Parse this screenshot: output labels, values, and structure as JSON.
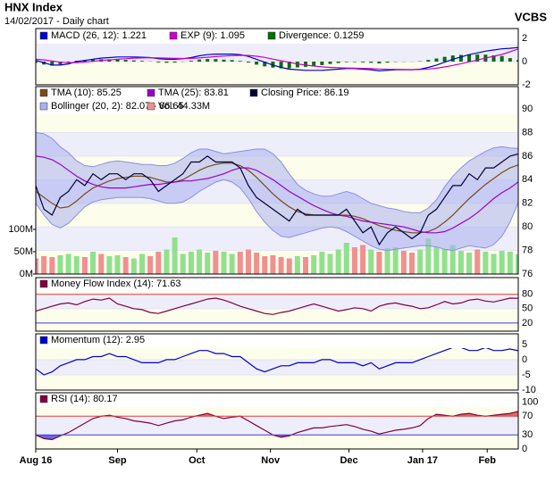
{
  "header": {
    "title": "HNX Index",
    "subtitle": "14/02/2017 - Daily chart",
    "source": "VCBS"
  },
  "x_axis": {
    "x": [
      0,
      1,
      2,
      3,
      4,
      5,
      6,
      7,
      8,
      9,
      10,
      11,
      12,
      13,
      14,
      15,
      16,
      17,
      18,
      19,
      20,
      21,
      22,
      23,
      24,
      25,
      26,
      27,
      28,
      29,
      30,
      31,
      32,
      33,
      34,
      35,
      36,
      37,
      38,
      39,
      40,
      41,
      42,
      43,
      44,
      45,
      46,
      47,
      48,
      49,
      50,
      51,
      52,
      53,
      54,
      55,
      56,
      57,
      58,
      59
    ],
    "xlim": [
      0,
      59
    ],
    "xticks": [
      {
        "value": 0,
        "label": "Aug 16"
      },
      {
        "value": 10,
        "label": "Sep"
      },
      {
        "value": 19.7,
        "label": "Oct"
      },
      {
        "value": 28.7,
        "label": "Nov"
      },
      {
        "value": 38.3,
        "label": "Dec"
      },
      {
        "value": 47.3,
        "label": "Jan 17"
      },
      {
        "value": 55.2,
        "label": "Feb"
      }
    ]
  },
  "chart_data": [
    {
      "type": "combo",
      "ylim": [
        -2,
        2.85
      ],
      "yticks": [
        -2,
        0,
        2
      ],
      "series": [
        {
          "name": "MACD (26, 12): 1.221",
          "kind": "line",
          "color": "#0000cc",
          "values": [
            0.1,
            -0.1,
            -0.3,
            -0.3,
            -0.2,
            0,
            0.1,
            0.2,
            0.3,
            0.35,
            0.4,
            0.4,
            0.4,
            0.38,
            0.35,
            0.25,
            0.2,
            0.2,
            0.25,
            0.35,
            0.5,
            0.6,
            0.65,
            0.65,
            0.65,
            0.6,
            0.45,
            0.2,
            -0.05,
            -0.3,
            -0.5,
            -0.65,
            -0.7,
            -0.75,
            -0.75,
            -0.75,
            -0.7,
            -0.65,
            -0.6,
            -0.6,
            -0.65,
            -0.7,
            -0.8,
            -0.75,
            -0.7,
            -0.7,
            -0.7,
            -0.65,
            -0.5,
            -0.3,
            -0.05,
            0.2,
            0.4,
            0.6,
            0.75,
            0.9,
            1,
            1.1,
            1.15,
            1.221
          ]
        },
        {
          "name": "EXP (9): 1.095",
          "kind": "line",
          "color": "#cc00cc",
          "values": [
            0.2,
            0.15,
            0.05,
            -0.05,
            -0.1,
            -0.08,
            -0.04,
            0.02,
            0.1,
            0.15,
            0.2,
            0.25,
            0.3,
            0.32,
            0.33,
            0.32,
            0.3,
            0.28,
            0.27,
            0.28,
            0.32,
            0.38,
            0.43,
            0.48,
            0.52,
            0.54,
            0.53,
            0.46,
            0.36,
            0.22,
            0.08,
            -0.07,
            -0.2,
            -0.3,
            -0.38,
            -0.45,
            -0.5,
            -0.53,
            -0.55,
            -0.56,
            -0.58,
            -0.6,
            -0.64,
            -0.66,
            -0.67,
            -0.68,
            -0.69,
            -0.68,
            -0.64,
            -0.57,
            -0.46,
            -0.33,
            -0.18,
            -0.02,
            0.14,
            0.3,
            0.46,
            0.62,
            0.85,
            1.095
          ]
        },
        {
          "name": "Divergence: 0.1259",
          "kind": "bar",
          "color": "#007000",
          "values": [
            -0.1,
            -0.25,
            -0.35,
            -0.25,
            -0.1,
            0.08,
            0.14,
            0.18,
            0.2,
            0.2,
            0.2,
            0.15,
            0.1,
            0.06,
            0.02,
            -0.07,
            -0.1,
            -0.08,
            -0.02,
            0.07,
            0.18,
            0.22,
            0.22,
            0.17,
            0.13,
            0.06,
            -0.08,
            -0.26,
            -0.41,
            -0.52,
            -0.58,
            -0.58,
            -0.5,
            -0.45,
            -0.37,
            -0.3,
            -0.2,
            -0.12,
            -0.05,
            -0.04,
            -0.07,
            -0.1,
            -0.16,
            -0.09,
            -0.03,
            -0.02,
            -0.01,
            0.03,
            0.14,
            0.27,
            0.41,
            0.53,
            0.58,
            0.62,
            0.61,
            0.6,
            0.54,
            0.48,
            0.3,
            0.1259
          ]
        }
      ]
    },
    {
      "type": "combo",
      "ylim": [
        76,
        91.9
      ],
      "yticks": [
        76,
        78,
        80,
        82,
        84,
        86,
        88,
        90
      ],
      "y2lim": [
        0,
        420
      ],
      "y2ticks": [
        {
          "value": 0,
          "label": "0M"
        },
        {
          "value": 50,
          "label": "50M"
        },
        {
          "value": 100,
          "label": "100M"
        }
      ],
      "series": [
        {
          "name": "TMA (10): 85.25",
          "kind": "line",
          "color": "#7a4a1a",
          "values": [
            83,
            82.5,
            82,
            81.6,
            81.7,
            82.2,
            82.8,
            83.3,
            83.6,
            83.9,
            84.1,
            84.2,
            84.3,
            84.3,
            84.2,
            84,
            83.8,
            83.8,
            84,
            84.4,
            84.8,
            85.1,
            85.3,
            85.4,
            85.4,
            85.2,
            84.8,
            84.2,
            83.5,
            82.8,
            82.2,
            81.7,
            81.3,
            81.1,
            81,
            81,
            81,
            81,
            81,
            80.9,
            80.7,
            80.4,
            80.1,
            79.9,
            79.7,
            79.6,
            79.5,
            79.5,
            79.6,
            79.9,
            80.4,
            81,
            81.7,
            82.4,
            83,
            83.6,
            84.1,
            84.6,
            85,
            85.25
          ]
        },
        {
          "name": "TMA (25): 83.81",
          "kind": "line",
          "color": "#9900cc",
          "values": [
            86,
            85.9,
            85.7,
            85.3,
            84.8,
            84.3,
            83.9,
            83.6,
            83.4,
            83.3,
            83.3,
            83.3,
            83.4,
            83.5,
            83.6,
            83.6,
            83.7,
            83.8,
            83.9,
            83.9,
            84,
            84.1,
            84.3,
            84.5,
            84.8,
            85,
            85,
            84.8,
            84.4,
            84,
            83.5,
            83,
            82.6,
            82.2,
            81.8,
            81.5,
            81.2,
            81,
            80.9,
            80.7,
            80.5,
            80.4,
            80.3,
            80.2,
            80.1,
            80,
            79.8,
            79.6,
            79.5,
            79.5,
            79.6,
            79.9,
            80.3,
            80.7,
            81.2,
            81.8,
            82.4,
            82.9,
            83.3,
            83.81
          ]
        },
        {
          "name": "Closing Price: 86.19",
          "kind": "line",
          "color": "#000033",
          "values": [
            83.5,
            81.5,
            81,
            82.5,
            83,
            84,
            83.5,
            84.5,
            84,
            84.5,
            84.5,
            84,
            84.5,
            84.5,
            84,
            83,
            83.5,
            84,
            84.5,
            85.5,
            85.5,
            86,
            85.5,
            85.5,
            85.5,
            85,
            83.5,
            82.5,
            82,
            81.5,
            81,
            80.5,
            81.5,
            81,
            81,
            81,
            81,
            81,
            81.5,
            80.5,
            79.5,
            80,
            78.5,
            79.5,
            80,
            79.5,
            79,
            79.5,
            81,
            81.5,
            82.5,
            83.5,
            83.5,
            84.5,
            84,
            85,
            85,
            85.5,
            86,
            86.19
          ]
        },
        {
          "name": "Bollinger (20, 2): 82.07 - 86.65",
          "kind": "band",
          "color": "#aab0ee",
          "upper": [
            88,
            87.9,
            87.5,
            86.8,
            86.3,
            85.6,
            85.2,
            85.1,
            85.3,
            85.5,
            85.6,
            85.5,
            85.4,
            85.3,
            85.3,
            85.2,
            85.2,
            85.4,
            85.8,
            86.3,
            86.6,
            86.6,
            86.4,
            86.2,
            86.3,
            86.4,
            86.5,
            86.6,
            86.6,
            86.2,
            85.5,
            84.5,
            83.6,
            83.1,
            82.8,
            82.6,
            82.6,
            82.8,
            83,
            82.8,
            82.4,
            82,
            81.8,
            81.6,
            81.5,
            81.3,
            81.2,
            81.2,
            81.6,
            82.3,
            83.4,
            84.3,
            85,
            85.6,
            86,
            86.4,
            86.7,
            86.8,
            86.7,
            86.65
          ],
          "lower": [
            82,
            81,
            80.2,
            79.9,
            80.3,
            81,
            81.7,
            82.1,
            82.3,
            82.4,
            82.5,
            82.5,
            82.5,
            82.5,
            82.4,
            82.2,
            82,
            82,
            82.1,
            82.5,
            83,
            83.4,
            83.8,
            84,
            83.8,
            83.3,
            82.4,
            81.3,
            80.4,
            79.7,
            79.2,
            79.1,
            79.3,
            79.5,
            79.7,
            79.9,
            80,
            79.9,
            79.6,
            79.2,
            78.8,
            78.4,
            78.1,
            78,
            78.1,
            78.2,
            78.3,
            78.4,
            78.4,
            78.3,
            78.1,
            78,
            78.2,
            78.4,
            78.3,
            78.2,
            78.5,
            79.2,
            80.4,
            82.07
          ]
        },
        {
          "name": "Vol: 44.33M",
          "kind": "volume",
          "axis": "y2",
          "color": "#f09090",
          "up_color": "#90e090",
          "values": [
            35,
            40,
            38,
            42,
            45,
            40,
            38,
            50,
            45,
            40,
            42,
            38,
            35,
            45,
            40,
            50,
            55,
            82,
            45,
            50,
            55,
            48,
            52,
            50,
            45,
            50,
            55,
            48,
            40,
            42,
            38,
            35,
            40,
            38,
            42,
            50,
            45,
            55,
            70,
            60,
            65,
            55,
            50,
            58,
            60,
            52,
            48,
            55,
            80,
            60,
            55,
            65,
            52,
            48,
            55,
            50,
            45,
            52,
            50,
            44.33
          ]
        }
      ]
    },
    {
      "type": "line",
      "ylim": [
        3,
        115
      ],
      "yticks": [
        20,
        50,
        80
      ],
      "levels": [
        {
          "value": 80,
          "color": "#e04040"
        },
        {
          "value": 20,
          "color": "#4040e0"
        }
      ],
      "series": [
        {
          "name": "Money Flow Index (14): 71.63",
          "kind": "line",
          "color": "#800040",
          "values": [
            45,
            50,
            55,
            60,
            62,
            58,
            65,
            70,
            68,
            72,
            60,
            55,
            50,
            48,
            42,
            40,
            45,
            50,
            55,
            60,
            65,
            70,
            72,
            68,
            62,
            55,
            50,
            45,
            40,
            38,
            42,
            45,
            50,
            55,
            60,
            55,
            50,
            45,
            48,
            52,
            50,
            45,
            55,
            60,
            62,
            58,
            55,
            50,
            52,
            58,
            65,
            60,
            62,
            68,
            70,
            66,
            64,
            68,
            72,
            71.63
          ]
        }
      ]
    },
    {
      "type": "line",
      "ylim": [
        -10,
        8.5
      ],
      "yticks": [
        -10,
        -5,
        0,
        5
      ],
      "series": [
        {
          "name": "Momentum (12): 2.95",
          "kind": "line",
          "color": "#0000cc",
          "values": [
            -3,
            -5,
            -4,
            -2,
            -1,
            0,
            0,
            1,
            1,
            2,
            1,
            1,
            0,
            -1,
            -1,
            -1,
            0,
            0,
            1,
            2,
            3,
            3,
            2,
            2,
            1,
            1,
            -1,
            -3,
            -4,
            -3,
            -2,
            -2,
            -1,
            -1,
            -1,
            0,
            0,
            -1,
            -1,
            -1,
            -2,
            -1,
            -3,
            -2,
            -1,
            -1,
            -1,
            0,
            1,
            2,
            3,
            4,
            4,
            3,
            3,
            4,
            3,
            3,
            3.5,
            2.95
          ]
        }
      ]
    },
    {
      "type": "line",
      "ylim": [
        0,
        120
      ],
      "yticks": [
        0,
        30,
        70,
        100
      ],
      "levels": [
        {
          "value": 70,
          "color": "#e04040",
          "fill": "above"
        },
        {
          "value": 30,
          "color": "#4040e0",
          "fill": "below"
        }
      ],
      "series": [
        {
          "name": "RSI (14): 80.17",
          "kind": "line",
          "color": "#800040",
          "values": [
            30,
            22,
            20,
            28,
            35,
            45,
            55,
            65,
            70,
            72,
            68,
            65,
            60,
            58,
            55,
            50,
            55,
            60,
            62,
            68,
            72,
            76,
            70,
            65,
            68,
            70,
            60,
            50,
            40,
            30,
            25,
            28,
            35,
            40,
            45,
            45,
            48,
            50,
            52,
            48,
            42,
            38,
            32,
            36,
            40,
            42,
            45,
            50,
            65,
            74,
            72,
            70,
            74,
            76,
            72,
            70,
            72,
            74,
            76,
            80.17
          ]
        }
      ]
    }
  ]
}
